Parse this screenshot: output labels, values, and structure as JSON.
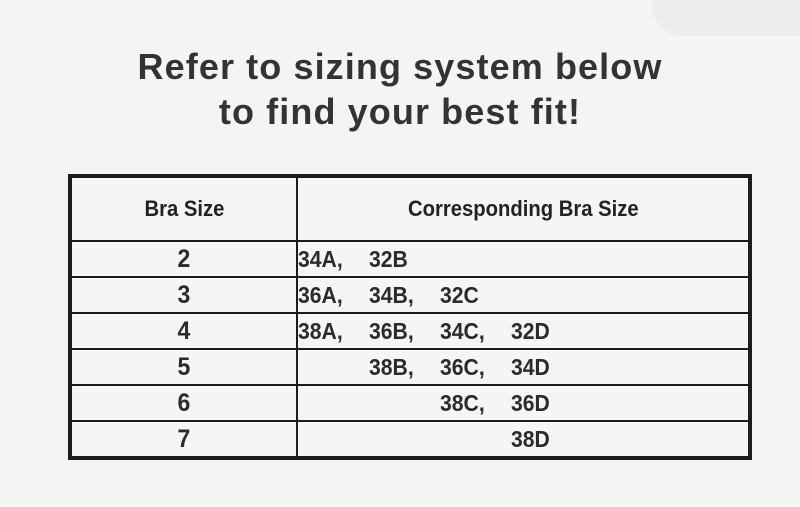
{
  "header": {
    "title_line1": "Refer to sizing system below",
    "title_line2": "to find your best fit!"
  },
  "table": {
    "headers": [
      "Bra Size",
      "Corresponding Bra Size"
    ],
    "rows": [
      {
        "size": "2",
        "slots": [
          "34A,",
          "32B",
          "",
          ""
        ]
      },
      {
        "size": "3",
        "slots": [
          "36A,",
          "34B,",
          "32C",
          ""
        ]
      },
      {
        "size": "4",
        "slots": [
          "38A,",
          "36B,",
          "34C,",
          "32D"
        ]
      },
      {
        "size": "5",
        "slots": [
          "",
          "38B,",
          "36C,",
          "34D"
        ]
      },
      {
        "size": "6",
        "slots": [
          "",
          "",
          "38C,",
          "36D"
        ]
      },
      {
        "size": "7",
        "slots": [
          "",
          "",
          "",
          "38D"
        ]
      }
    ]
  },
  "colors": {
    "background": "#f5f4f2",
    "corner_shade": "#eeedeb",
    "table_border": "#1c1c1c",
    "text": "#2a2a2a"
  }
}
